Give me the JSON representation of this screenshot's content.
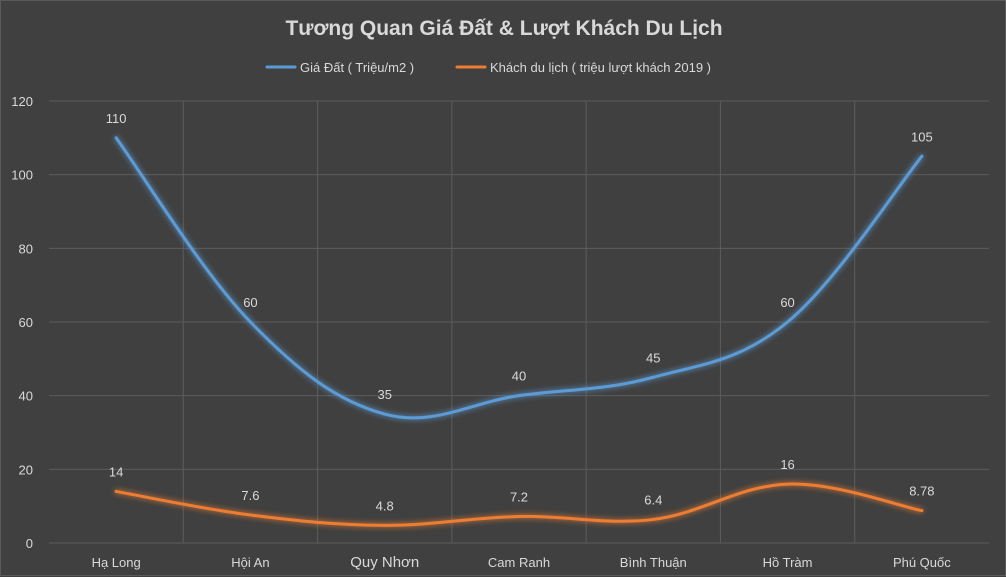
{
  "chart_data": {
    "type": "line",
    "title": "Tương Quan Giá Đất & Lượt Khách Du Lịch",
    "categories": [
      "Hạ Long",
      "Hội An",
      "Quy Nhơn",
      "Cam Ranh",
      "Bình Thuận",
      "Hồ Tràm",
      "Phú Quốc"
    ],
    "series": [
      {
        "name": "Giá Đất ( Triệu/m2 )",
        "color": "#5b9bd5",
        "values": [
          110,
          60,
          35,
          40,
          45,
          60,
          105
        ],
        "labels": [
          "110",
          "60",
          "35",
          "40",
          "45",
          "60",
          "105"
        ]
      },
      {
        "name": "Khách du lịch ( triệu lượt khách 2019 )",
        "color": "#ed7d31",
        "values": [
          14,
          7.6,
          4.8,
          7.2,
          6.4,
          16,
          8.78
        ],
        "labels": [
          "14",
          "7.6",
          "4.8",
          "7.2",
          "6.4",
          "16",
          "8.78"
        ]
      }
    ],
    "ylim": [
      0,
      120
    ],
    "yticks": [
      "0",
      "20",
      "40",
      "60",
      "80",
      "100",
      "120"
    ],
    "grid": true,
    "legend": "top-center",
    "background": "#404040"
  }
}
